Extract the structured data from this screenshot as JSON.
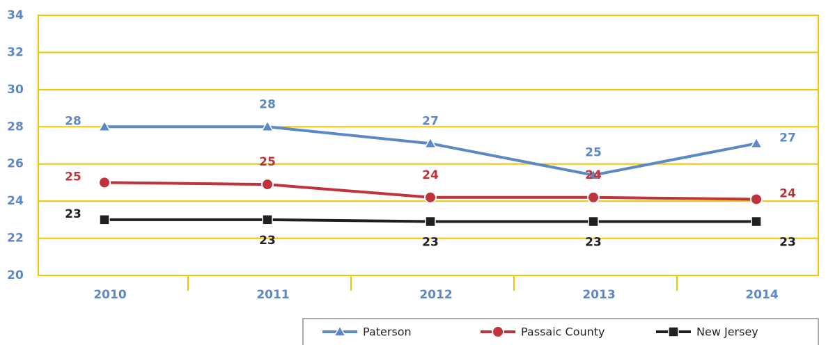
{
  "chart_data": {
    "type": "line",
    "categories": [
      "2010",
      "2011",
      "2012",
      "2013",
      "2014"
    ],
    "series": [
      {
        "name": "Paterson",
        "color": "#5b88c6",
        "marker": "triangle",
        "values": [
          28,
          28,
          27.1,
          25.4,
          27.1
        ],
        "value_labels": [
          "28",
          "28",
          "27",
          "25",
          "27"
        ]
      },
      {
        "name": "Passaic County",
        "color": "#c0333a",
        "marker": "circle",
        "values": [
          25,
          24.9,
          24.2,
          24.2,
          24.1
        ],
        "value_labels": [
          "25",
          "25",
          "24",
          "24",
          "24"
        ]
      },
      {
        "name": "New Jersey",
        "color": "#231f20",
        "marker": "square",
        "values": [
          23,
          23,
          22.9,
          22.9,
          22.9
        ],
        "value_labels": [
          "23",
          "23",
          "23",
          "23",
          "23"
        ]
      }
    ],
    "ylim": [
      20,
      34
    ],
    "yticks": [
      20,
      22,
      24,
      26,
      28,
      30,
      32,
      34
    ],
    "grid": true,
    "grid_color": "#f2c500",
    "axis_label_color": "#5b88c6",
    "legend": "bottom-right"
  }
}
